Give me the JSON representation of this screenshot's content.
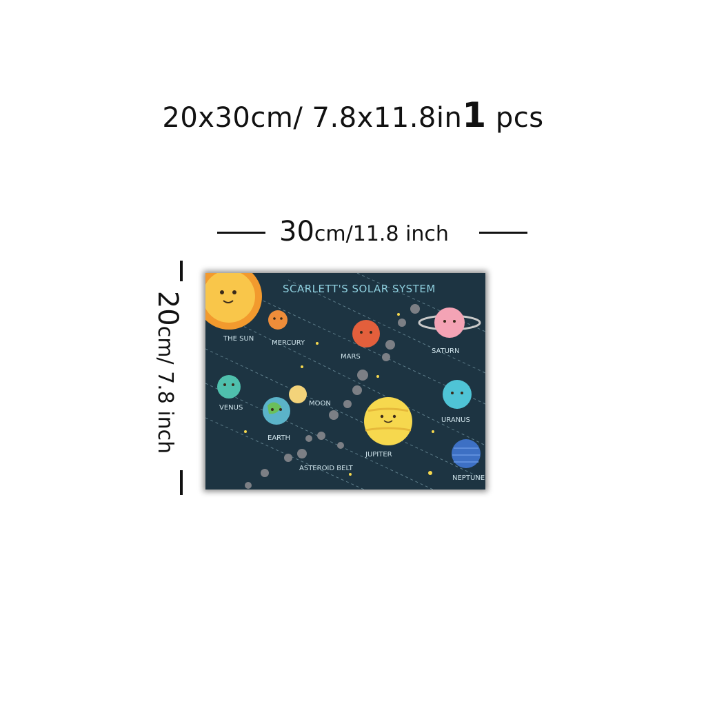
{
  "product": {
    "size_headline": "20x30cm/ 7.8x11.8in",
    "quantity_number": "1",
    "quantity_unit": "pcs"
  },
  "dimensions": {
    "width_value": "30",
    "width_unit": "cm/11.8 inch",
    "height_value": "20",
    "height_unit": "cm/ 7.8 inch"
  },
  "poster": {
    "title": "SCARLETT'S SOLAR SYSTEM",
    "labels": {
      "sun": "THE SUN",
      "mercury": "MERCURY",
      "mars": "MARS",
      "saturn": "SATURN",
      "venus": "VENUS",
      "moon": "MOON",
      "earth": "EARTH",
      "uranus": "URANUS",
      "jupiter": "JUPITER",
      "asteroid_belt": "ASTEROID BELT",
      "neptune": "NEPTUNE"
    },
    "colors": {
      "background": "#1d3442",
      "sun": "#f9c64a",
      "mercury": "#ee8d3a",
      "mars": "#e35f3c",
      "saturn": "#f4a3b5",
      "venus": "#4fc0ad",
      "earth": "#5bb3c9",
      "moon": "#f3d37a",
      "jupiter": "#f6d84e",
      "uranus": "#4fc4d6",
      "neptune": "#3d70c4"
    }
  }
}
